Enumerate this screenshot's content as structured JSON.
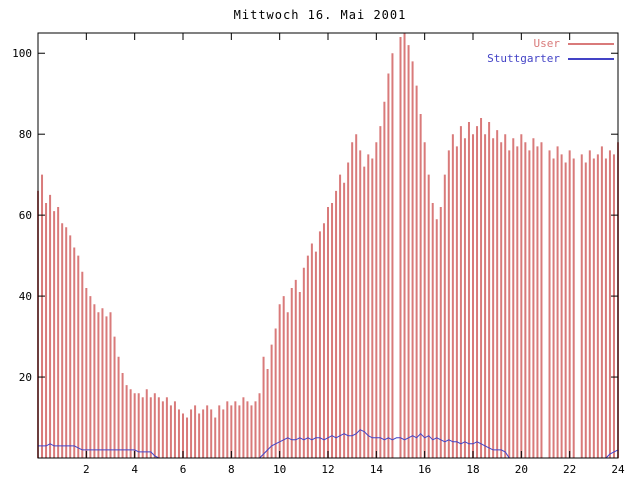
{
  "chart_data": {
    "type": "bar",
    "title": "Mittwoch 16. Mai 2001",
    "xlim": [
      0,
      24
    ],
    "ylim": [
      0,
      105
    ],
    "x_ticks": [
      2,
      4,
      6,
      8,
      10,
      12,
      14,
      16,
      18,
      20,
      22,
      24
    ],
    "y_ticks": [
      20,
      40,
      60,
      80,
      100
    ],
    "x_step_minutes": 10,
    "grid": false,
    "legend_position": "top-right-inside",
    "legend": [
      {
        "name": "User",
        "color": "#d97a7a",
        "style": "impulses"
      },
      {
        "name": "Stuttgarter",
        "color": "#4343c6",
        "style": "line"
      }
    ],
    "series": [
      {
        "name": "User",
        "type": "impulses",
        "color": "#d97a7a",
        "values": [
          66,
          70,
          63,
          65,
          61,
          62,
          58,
          57,
          55,
          52,
          50,
          46,
          42,
          40,
          38,
          36,
          37,
          35,
          36,
          30,
          25,
          21,
          18,
          17,
          16,
          16,
          15,
          17,
          15,
          16,
          15,
          14,
          15,
          13,
          14,
          12,
          11,
          10,
          12,
          13,
          11,
          12,
          13,
          12,
          10,
          13,
          12,
          14,
          13,
          14,
          13,
          15,
          14,
          13,
          14,
          16,
          25,
          22,
          28,
          32,
          38,
          40,
          36,
          42,
          44,
          41,
          47,
          50,
          53,
          51,
          56,
          58,
          62,
          63,
          66,
          70,
          68,
          73,
          78,
          80,
          76,
          72,
          75,
          74,
          78,
          82,
          88,
          95,
          100,
          null,
          104,
          105,
          102,
          98,
          92,
          85,
          78,
          70,
          63,
          59,
          62,
          70,
          76,
          80,
          77,
          82,
          79,
          83,
          80,
          82,
          84,
          80,
          83,
          79,
          81,
          78,
          80,
          76,
          79,
          77,
          80,
          78,
          76,
          79,
          77,
          78,
          null,
          76,
          74,
          77,
          75,
          73,
          76,
          74,
          null,
          75,
          73,
          76,
          74,
          75,
          77,
          74,
          76,
          75,
          78
        ]
      },
      {
        "name": "Stuttgarter",
        "type": "line",
        "color": "#4343c6",
        "values": [
          3,
          3,
          3,
          3.5,
          3,
          3,
          3,
          3,
          3,
          3,
          2.5,
          2,
          2,
          2,
          2,
          2,
          2,
          2,
          2,
          2,
          2,
          2,
          2,
          2,
          2,
          1.5,
          1.5,
          1.5,
          1.5,
          0.5,
          0,
          0,
          0,
          0,
          0,
          0,
          0,
          0,
          0,
          0,
          0,
          0,
          0,
          0,
          0,
          0,
          0,
          0,
          0,
          0,
          0,
          0,
          0,
          0,
          0,
          0,
          1,
          2,
          3,
          3.5,
          4,
          4.5,
          5,
          4.5,
          4.5,
          5,
          4.5,
          5,
          4.5,
          5,
          5,
          4.5,
          5,
          5.5,
          5,
          5.5,
          6,
          5.5,
          5.5,
          6,
          7,
          6.5,
          5.5,
          5,
          5,
          5,
          4.5,
          5,
          4.5,
          5,
          5,
          4.5,
          5,
          5.5,
          5,
          6,
          5,
          5.5,
          4.5,
          5,
          4.5,
          4,
          4.5,
          4,
          4,
          3.5,
          4,
          3.5,
          3.5,
          4,
          3.5,
          3,
          2.5,
          2,
          2,
          2,
          1.5,
          0,
          0,
          0,
          0,
          0,
          0,
          0,
          0,
          0,
          0,
          0,
          0,
          0,
          0,
          0,
          0,
          0,
          0,
          0,
          0,
          0,
          0,
          0,
          0,
          0,
          1,
          1.5,
          2
        ]
      }
    ],
    "colors": {
      "axis": "#000000",
      "background": "#ffffff",
      "title_text": "#000000"
    }
  }
}
